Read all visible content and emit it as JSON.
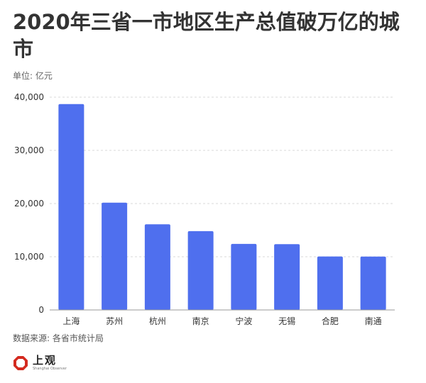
{
  "header": {
    "title": "2020年三省一市地区生产总值破万亿的城市",
    "unit": "单位: 亿元"
  },
  "footer": {
    "source": "数据来源: 各省市统计局",
    "logo_name": "上观",
    "logo_sub": "Shanghai Observer"
  },
  "colors": {
    "bar": "#4F6FEE",
    "grid": "#d9d9d9",
    "axis": "#999999",
    "logo_red": "#d42a1f"
  },
  "chart_data": {
    "type": "bar",
    "title": "2020年三省一市地区生产总值破万亿的城市",
    "ylabel": "单位: 亿元",
    "xlabel": "",
    "categories": [
      "上海",
      "苏州",
      "杭州",
      "南京",
      "宁波",
      "无锡",
      "合肥",
      "南通"
    ],
    "values": [
      38701,
      20171,
      16106,
      14818,
      12409,
      12370,
      10046,
      10036
    ],
    "ylim": [
      0,
      40000
    ],
    "yticks": [
      0,
      10000,
      20000,
      30000,
      40000
    ],
    "ytick_labels": [
      "0",
      "10,000",
      "20,000",
      "30,000",
      "40,000"
    ],
    "grid": true,
    "legend": "none"
  }
}
